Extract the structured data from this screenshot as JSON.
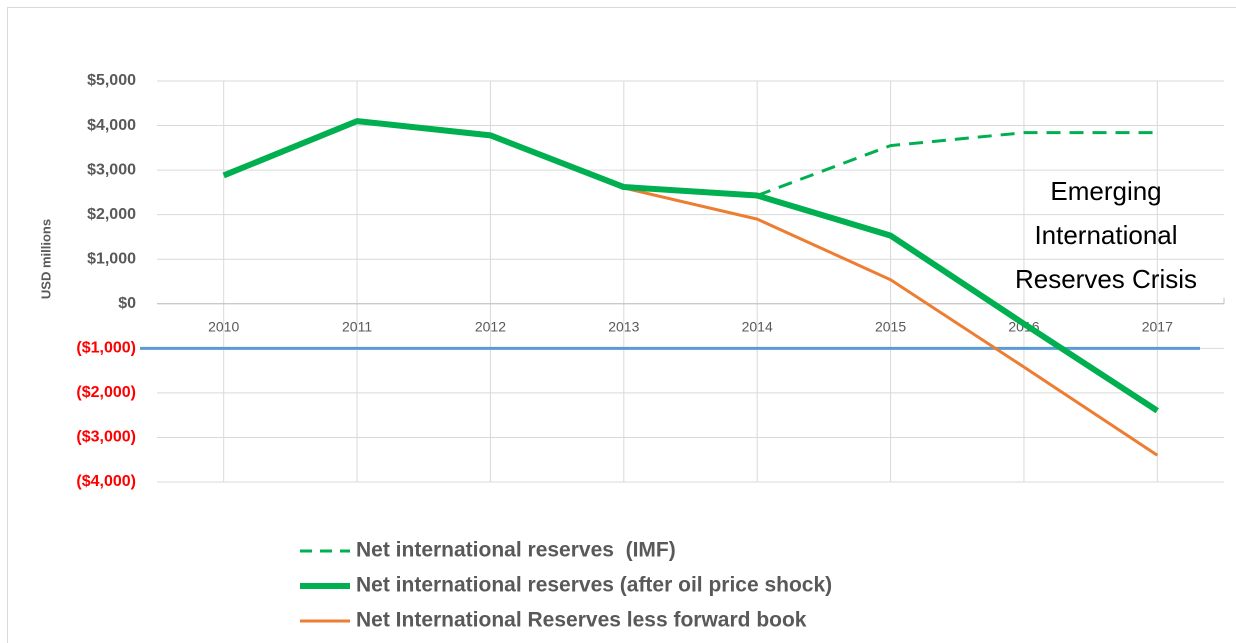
{
  "chart_data": {
    "type": "line",
    "y_label": "USD millions",
    "categories": [
      "2010",
      "2011",
      "2012",
      "2013",
      "2014",
      "2015",
      "2016",
      "2017"
    ],
    "series": [
      {
        "name": "Net international reserves  (IMF)",
        "color": "#00b050",
        "width": 3,
        "dash": true,
        "values": [
          null,
          null,
          null,
          null,
          2430,
          3550,
          3840,
          3840
        ]
      },
      {
        "name": "Net international reserves (after oil price shock)",
        "color": "#00b050",
        "width": 6,
        "dash": false,
        "values": [
          2880,
          4100,
          3780,
          2620,
          2430,
          1530,
          -450,
          -2400
        ]
      },
      {
        "name": "Net International Reserves less forward book",
        "color": "#ed7d31",
        "width": 3,
        "dash": false,
        "values": [
          2900,
          4130,
          3810,
          2600,
          1900,
          540,
          -1420,
          -3400
        ]
      }
    ],
    "reference_line": {
      "value": -1000,
      "color": "#5b9bd5"
    },
    "annotation": [
      "Emerging",
      "International",
      "Reserves Crisis"
    ],
    "ylim": [
      -4000,
      5000
    ],
    "yticks": [
      {
        "value": -4000,
        "label": "($4,000)"
      },
      {
        "value": -3000,
        "label": "($3,000)"
      },
      {
        "value": -2000,
        "label": "($2,000)"
      },
      {
        "value": -1000,
        "label": "($1,000)"
      },
      {
        "value": 0,
        "label": "$0"
      },
      {
        "value": 1000,
        "label": "$1,000"
      },
      {
        "value": 2000,
        "label": "$2,000"
      },
      {
        "value": 3000,
        "label": "$3,000"
      },
      {
        "value": 4000,
        "label": "$4,000"
      },
      {
        "value": 5000,
        "label": "$5,000"
      }
    ],
    "negative_label_color": "#ff0000",
    "grid": true
  }
}
